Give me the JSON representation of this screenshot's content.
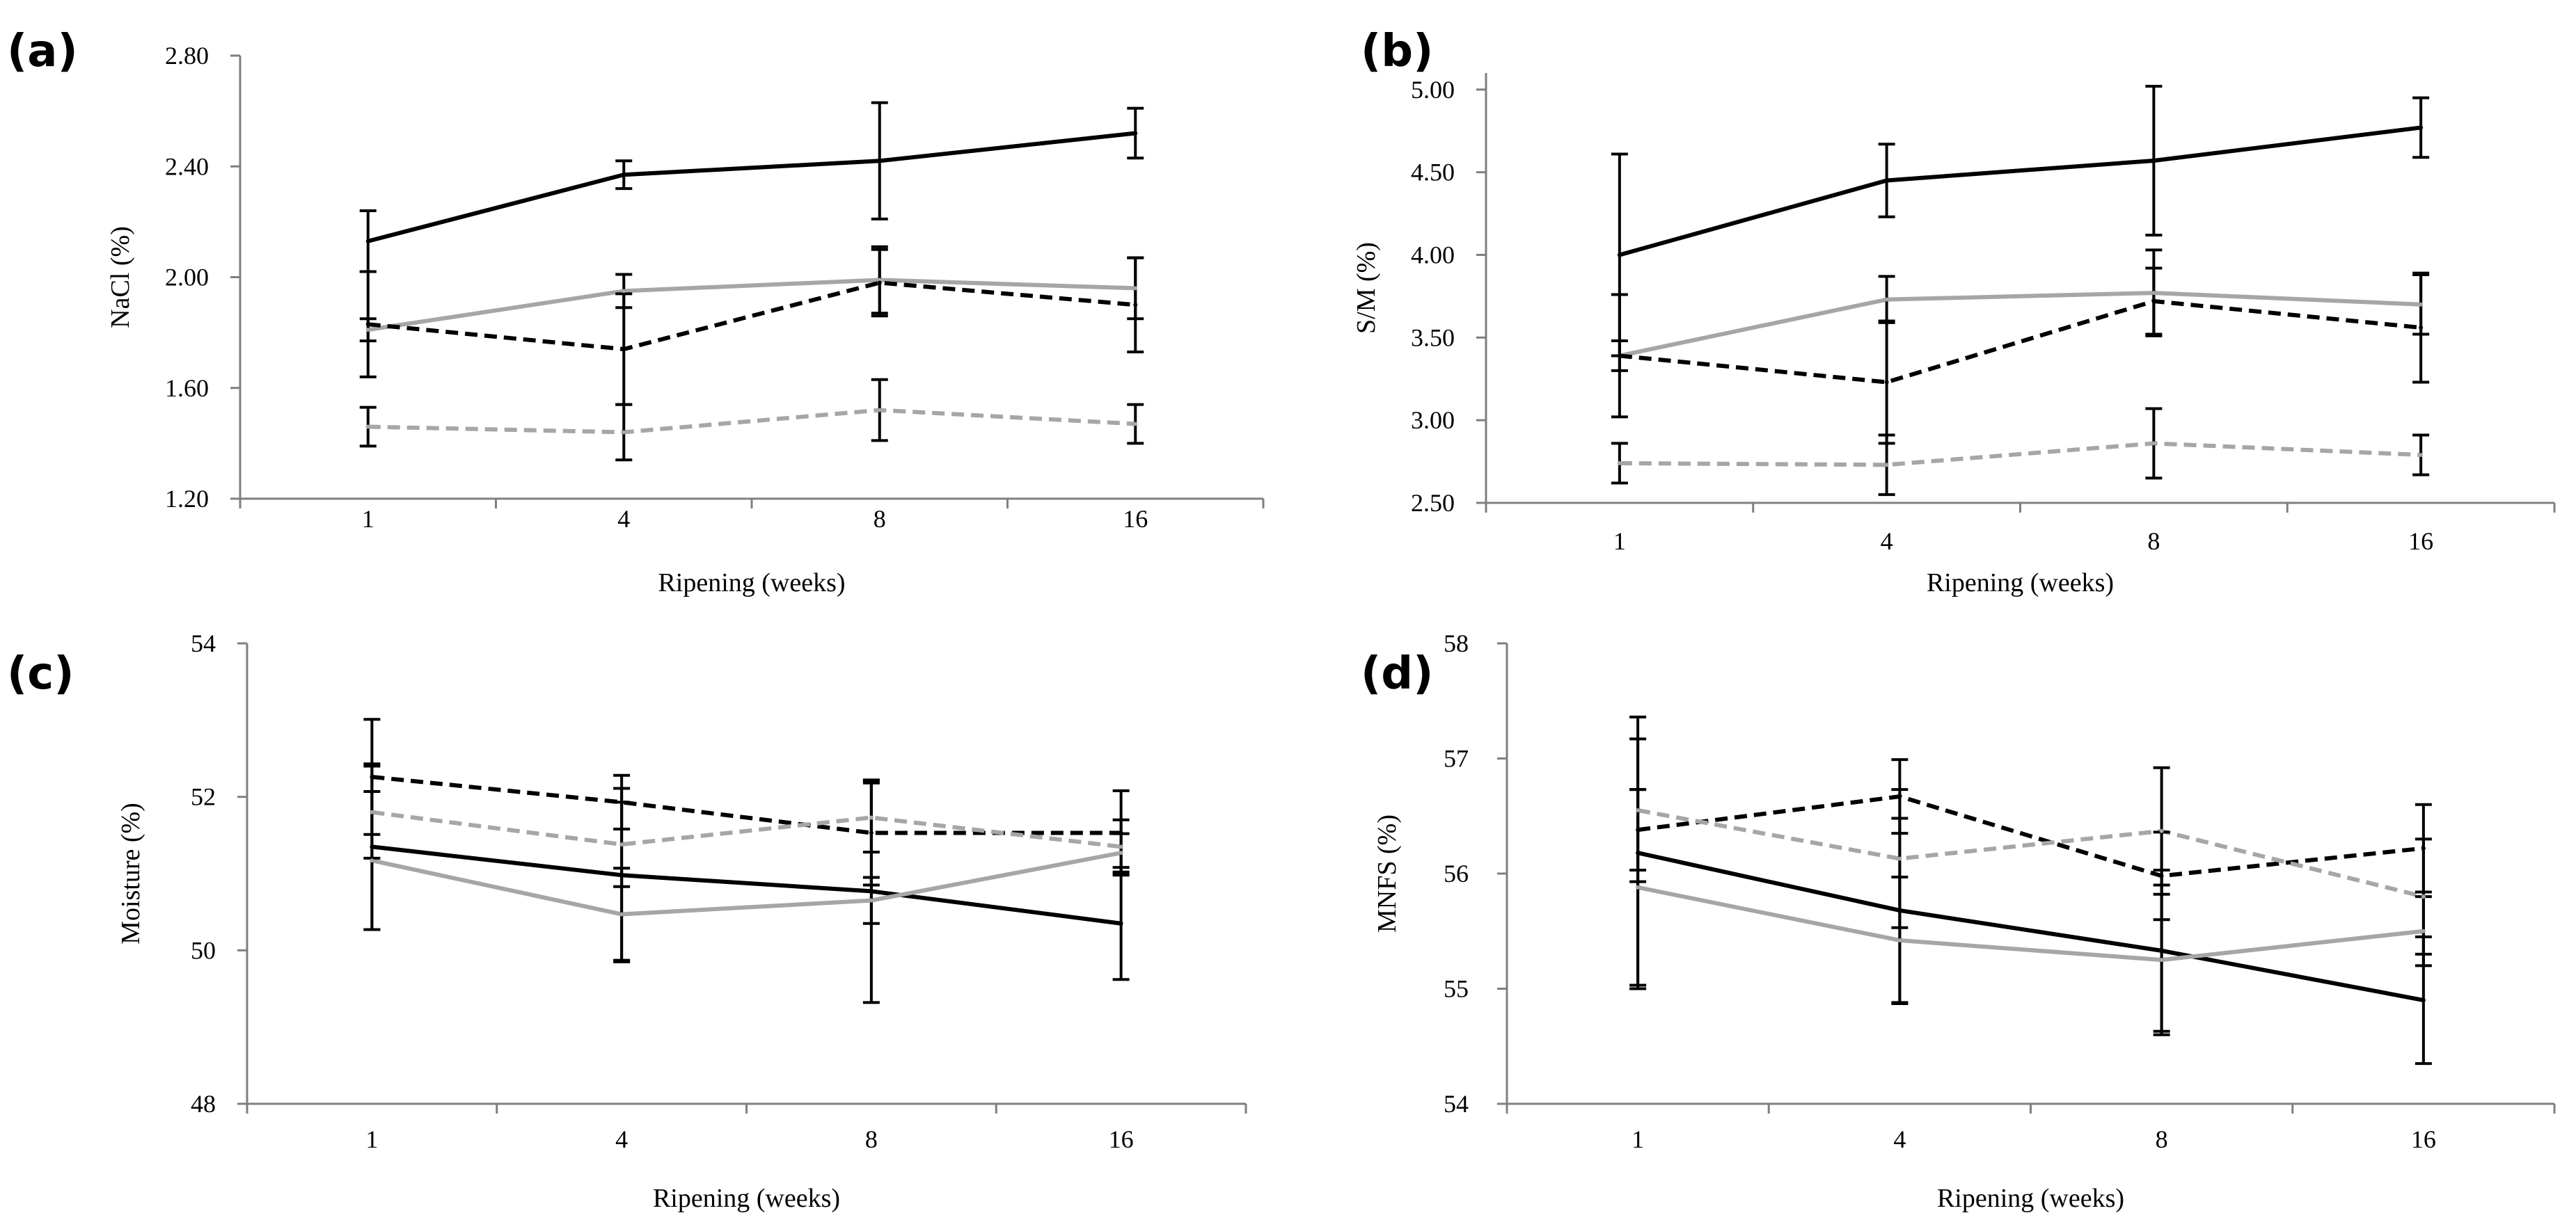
{
  "chart_data": [
    {
      "panel": "(a)",
      "type": "line",
      "xlabel": "Ripening (weeks)",
      "ylabel": "NaCl (%)",
      "categories": [
        "1",
        "4",
        "8",
        "16"
      ],
      "ylim": [
        1.2,
        2.8
      ],
      "yticks": [
        "1.20",
        "1.60",
        "2.00",
        "2.40",
        "2.80"
      ],
      "series": [
        {
          "color": "#000000",
          "dash": false,
          "values": [
            2.13,
            2.37,
            2.42,
            2.52
          ],
          "errors": [
            0.11,
            0.05,
            0.21,
            0.09
          ]
        },
        {
          "color": "#a6a6a6",
          "dash": false,
          "values": [
            1.81,
            1.95,
            1.99,
            1.96
          ],
          "errors": [
            0.04,
            0.06,
            0.12,
            0.11
          ]
        },
        {
          "color": "#000000",
          "dash": true,
          "values": [
            1.83,
            1.74,
            1.98,
            1.9
          ],
          "errors": [
            0.19,
            0.2,
            0.12,
            0.17
          ]
        },
        {
          "color": "#a6a6a6",
          "dash": true,
          "values": [
            1.46,
            1.44,
            1.52,
            1.47
          ],
          "errors": [
            0.07,
            0.1,
            0.11,
            0.07
          ]
        }
      ]
    },
    {
      "panel": "(b)",
      "type": "line",
      "xlabel": "Ripening (weeks)",
      "ylabel": "S/M (%)",
      "categories": [
        "1",
        "4",
        "8",
        "16"
      ],
      "ylim": [
        2.5,
        5.1
      ],
      "yticks": [
        "2.50",
        "3.00",
        "3.50",
        "4.00",
        "4.50",
        "5.00"
      ],
      "series": [
        {
          "color": "#000000",
          "dash": false,
          "values": [
            4.0,
            4.45,
            4.57,
            4.77
          ],
          "errors": [
            0.61,
            0.22,
            0.45,
            0.18
          ]
        },
        {
          "color": "#a6a6a6",
          "dash": false,
          "values": [
            3.39,
            3.73,
            3.77,
            3.7
          ],
          "errors": [
            0.37,
            0.14,
            0.26,
            0.18
          ]
        },
        {
          "color": "#000000",
          "dash": true,
          "values": [
            3.39,
            3.23,
            3.72,
            3.56
          ],
          "errors": [
            0.09,
            0.37,
            0.2,
            0.33
          ]
        },
        {
          "color": "#a6a6a6",
          "dash": true,
          "values": [
            2.74,
            2.73,
            2.86,
            2.79
          ],
          "errors": [
            0.12,
            0.18,
            0.21,
            0.12
          ]
        }
      ]
    },
    {
      "panel": "(c)",
      "type": "line",
      "xlabel": "Ripening (weeks)",
      "ylabel": "Moisture (%)",
      "categories": [
        "1",
        "4",
        "8",
        "16"
      ],
      "ylim": [
        48,
        54
      ],
      "yticks": [
        "48",
        "50",
        "52",
        "54"
      ],
      "series": [
        {
          "color": "#000000",
          "dash": false,
          "values": [
            51.35,
            50.98,
            50.77,
            50.35
          ],
          "errors": [
            1.08,
            1.13,
            1.45,
            0.73
          ]
        },
        {
          "color": "#a6a6a6",
          "dash": false,
          "values": [
            51.17,
            50.47,
            50.65,
            51.27
          ],
          "errors": [
            0.9,
            0.6,
            0.3,
            0.25
          ]
        },
        {
          "color": "#000000",
          "dash": true,
          "values": [
            52.26,
            51.93,
            51.53,
            51.53
          ],
          "errors": [
            0.75,
            0.35,
            0.68,
            0.55
          ]
        },
        {
          "color": "#a6a6a6",
          "dash": true,
          "values": [
            51.8,
            51.38,
            51.73,
            51.35
          ],
          "errors": [
            0.6,
            0.55,
            0.45,
            0.35
          ]
        }
      ]
    },
    {
      "panel": "(d)",
      "type": "line",
      "xlabel": "Ripening (weeks)",
      "ylabel": "MNFS (%)",
      "categories": [
        "1",
        "4",
        "8",
        "16"
      ],
      "ylim": [
        54,
        58
      ],
      "yticks": [
        "54",
        "55",
        "56",
        "57",
        "58"
      ],
      "series": [
        {
          "color": "#000000",
          "dash": false,
          "values": [
            56.18,
            55.68,
            55.33,
            54.9
          ],
          "errors": [
            1.18,
            0.8,
            0.7,
            0.55
          ]
        },
        {
          "color": "#a6a6a6",
          "dash": false,
          "values": [
            55.88,
            55.42,
            55.25,
            55.5
          ],
          "errors": [
            0.85,
            0.55,
            0.65,
            0.3
          ]
        },
        {
          "color": "#000000",
          "dash": true,
          "values": [
            56.38,
            56.67,
            55.98,
            56.22
          ],
          "errors": [
            0.35,
            0.32,
            0.38,
            0.38
          ]
        },
        {
          "color": "#a6a6a6",
          "dash": true,
          "values": [
            56.55,
            56.13,
            56.37,
            55.8
          ],
          "errors": [
            0.62,
            0.6,
            0.55,
            0.5
          ]
        }
      ]
    }
  ]
}
